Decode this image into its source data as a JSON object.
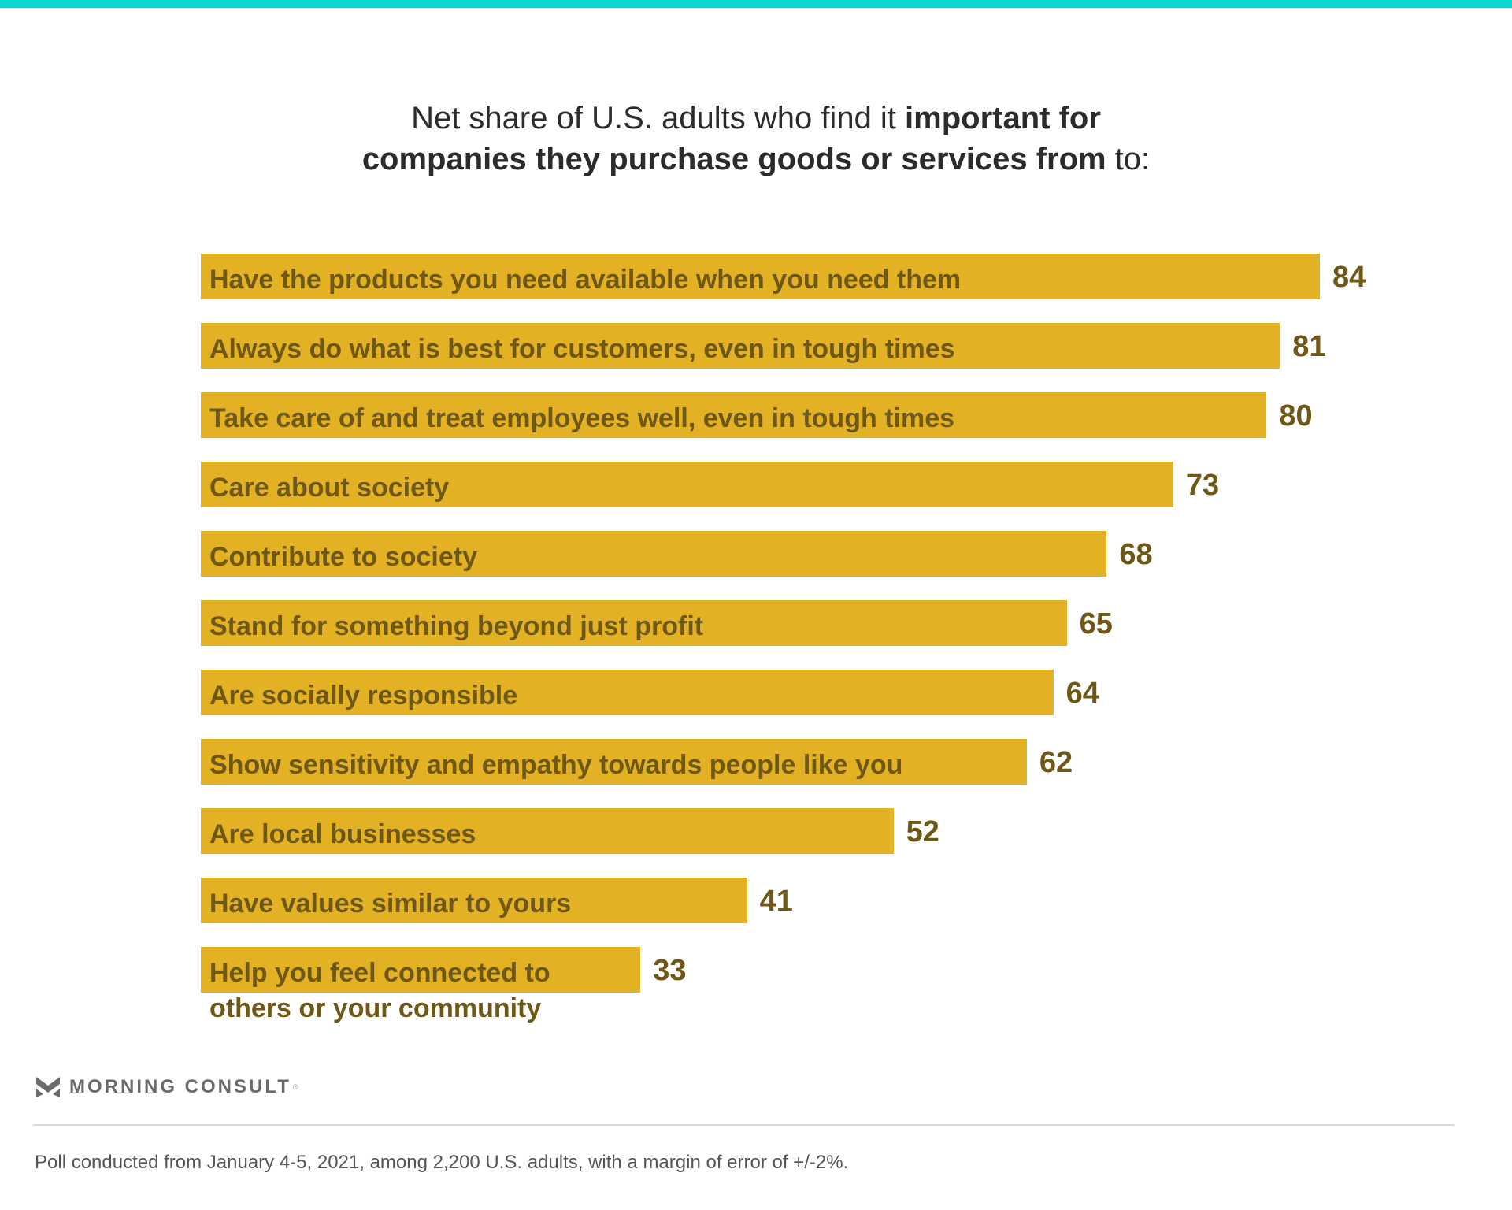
{
  "header": {
    "accent_color": "#0dd5cf"
  },
  "title": {
    "line1_regular": "Net share of U.S. adults who find it ",
    "line1_bold": "important for",
    "line2_bold": "companies they purchase goods or services from",
    "line2_regular": " to:"
  },
  "chart_data": {
    "type": "bar",
    "orientation": "horizontal",
    "title": "Net share of U.S. adults who find it important for companies they purchase goods or services from to:",
    "xlabel": "",
    "ylabel": "",
    "xlim": [
      0,
      84
    ],
    "grid": false,
    "legend": "none",
    "bar_color": "#e2b124",
    "label_color": "#6f5715",
    "categories": [
      "Have the products you need available when you need them",
      "Always do what is best for customers, even in tough times",
      "Take care of and treat employees well, even in tough times",
      "Care about society",
      "Contribute to society",
      "Stand for something beyond just profit",
      "Are socially responsible",
      "Show sensitivity and empathy towards people like you",
      "Are local businesses",
      "Have values similar to yours",
      "Help you feel connected to others or your community"
    ],
    "label_lines": [
      [
        "Have the products you need available when you need them"
      ],
      [
        "Always do what is best for customers, even in tough times"
      ],
      [
        "Take care of and treat employees well, even in tough times"
      ],
      [
        "Care about society"
      ],
      [
        "Contribute to society"
      ],
      [
        "Stand for something beyond just profit"
      ],
      [
        "Are socially responsible"
      ],
      [
        "Show sensitivity and empathy towards people like you"
      ],
      [
        "Are local businesses"
      ],
      [
        "Have values similar to yours"
      ],
      [
        "Help you feel connected to",
        "others or your community"
      ]
    ],
    "values": [
      84,
      81,
      80,
      73,
      68,
      65,
      64,
      62,
      52,
      41,
      33
    ]
  },
  "branding": {
    "logo_text": "MORNING CONSULT",
    "logo_reg": "®"
  },
  "footer": {
    "note": "Poll conducted from January 4-5, 2021, among 2,200 U.S. adults, with a margin of error of +/-2%."
  }
}
